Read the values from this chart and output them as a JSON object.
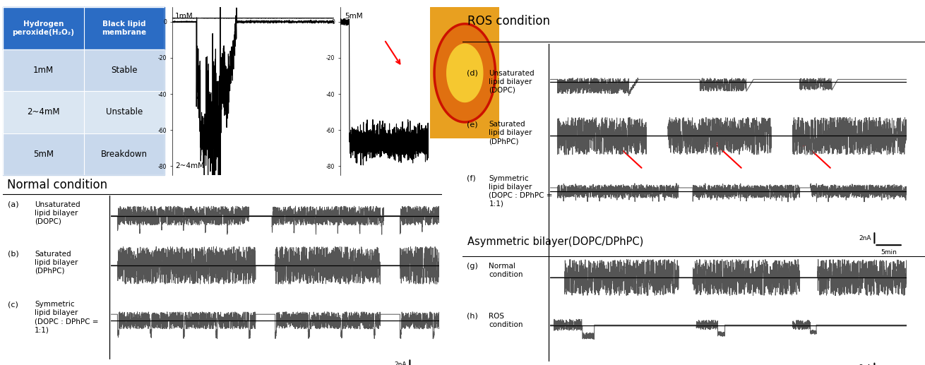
{
  "title_normal": "Normal condition",
  "title_ros": "ROS condition",
  "title_asym": "Asymmetric bilayer(DOPC/DPhPC)",
  "table_header_col1": "Hydrogen\nperoxide(H₂O₂)",
  "table_header_col2": "Black lipid\nmembrane",
  "table_rows": [
    [
      "1mM",
      "Stable"
    ],
    [
      "2~4mM",
      "Unstable"
    ],
    [
      "5mM",
      "Breakdown"
    ]
  ],
  "header_color": "#2B6CC4",
  "row_color_1": "#C8D8EC",
  "row_color_2": "#DAE6F2",
  "text_unsaturated": "Unsaturated\nlipid bilayer\n(DOPC)",
  "text_saturated": "Saturated\nlipid bilayer\n(DPhPC)",
  "text_symmetric": "Symmetric\nlipid bilayer\n(DOPC : DPhPC =\n1:1)",
  "text_normal_cond": "Normal\ncondition",
  "text_ros_cond": "ROS\ncondition",
  "signal_color": "#555555",
  "line_color": "#000000",
  "arrow_color": "#CC0000",
  "scale_bar_text": "2nA",
  "scale_bar_time": "5min",
  "bg_color": "#ffffff",
  "blm_labels": [
    "1mM",
    "5mM",
    "2~4mM"
  ],
  "img_bg": "#E8A020",
  "img_inner": "#F5C830",
  "img_ring": "#CC1100"
}
